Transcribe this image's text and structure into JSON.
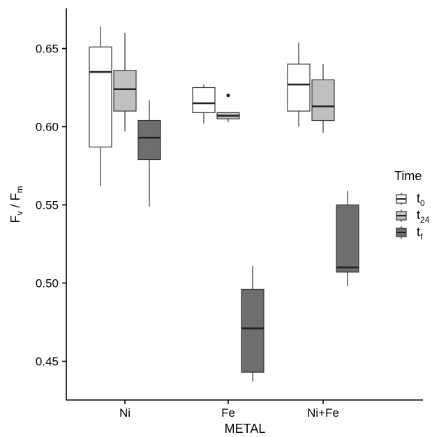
{
  "chart_data": {
    "type": "boxplot",
    "title": "",
    "xlabel": "METAL",
    "ylabel": {
      "main1": "F",
      "sub1": "v",
      "sep": " / ",
      "main2": "F",
      "sub2": "m"
    },
    "ylim": [
      0.43,
      0.67
    ],
    "yticks": [
      "0.45",
      "0.50",
      "0.55",
      "0.60",
      "0.65"
    ],
    "ytick_values": [
      0.45,
      0.5,
      0.55,
      0.6,
      0.65
    ],
    "grid": false,
    "legend_placement": "right",
    "legend": {
      "title": "Time",
      "entries": [
        {
          "main": "t",
          "sub": "0",
          "color": "#ffffff"
        },
        {
          "main": "t",
          "sub": "24",
          "color": "#c0c0c0"
        },
        {
          "main": "t",
          "sub": "f",
          "color": "#6e6e6e"
        }
      ]
    },
    "categories": [
      "Ni",
      "Fe",
      "Ni+Fe"
    ],
    "series": [
      {
        "name": "t0",
        "color": "#ffffff",
        "boxes": [
          {
            "min": 0.562,
            "q1": 0.587,
            "median": 0.635,
            "q3": 0.651,
            "max": 0.664,
            "outliers": []
          },
          {
            "min": 0.602,
            "q1": 0.609,
            "median": 0.615,
            "q3": 0.625,
            "max": 0.627,
            "outliers": []
          },
          {
            "min": 0.6,
            "q1": 0.61,
            "median": 0.627,
            "q3": 0.64,
            "max": 0.654,
            "outliers": []
          }
        ]
      },
      {
        "name": "t24",
        "color": "#c0c0c0",
        "boxes": [
          {
            "min": 0.597,
            "q1": 0.61,
            "median": 0.624,
            "q3": 0.636,
            "max": 0.66,
            "outliers": []
          },
          {
            "min": 0.603,
            "q1": 0.605,
            "median": 0.607,
            "q3": 0.609,
            "max": 0.609,
            "outliers": [
              0.62
            ]
          },
          {
            "min": 0.596,
            "q1": 0.604,
            "median": 0.613,
            "q3": 0.63,
            "max": 0.64,
            "outliers": []
          }
        ]
      },
      {
        "name": "tf",
        "color": "#6e6e6e",
        "boxes": [
          {
            "min": 0.549,
            "q1": 0.579,
            "median": 0.593,
            "q3": 0.604,
            "max": 0.617,
            "outliers": []
          },
          {
            "min": 0.437,
            "q1": 0.443,
            "median": 0.471,
            "q3": 0.496,
            "max": 0.511,
            "outliers": []
          },
          {
            "min": 0.498,
            "q1": 0.507,
            "median": 0.51,
            "q3": 0.55,
            "max": 0.559,
            "outliers": []
          }
        ]
      }
    ]
  }
}
